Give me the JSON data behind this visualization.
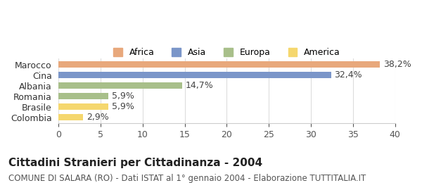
{
  "categories": [
    "Colombia",
    "Brasile",
    "Romania",
    "Albania",
    "Cina",
    "Marocco"
  ],
  "values": [
    2.9,
    5.9,
    5.9,
    14.7,
    32.4,
    38.2
  ],
  "labels": [
    "2,9%",
    "5,9%",
    "5,9%",
    "14,7%",
    "32,4%",
    "38,2%"
  ],
  "colors": [
    "#f5d76e",
    "#f5d76e",
    "#a8bf8a",
    "#a8bf8a",
    "#7b96c9",
    "#e8a87c"
  ],
  "continent": [
    "America",
    "America",
    "Europa",
    "Europa",
    "Asia",
    "Africa"
  ],
  "legend_items": [
    {
      "label": "Africa",
      "color": "#e8a87c"
    },
    {
      "label": "Asia",
      "color": "#7b96c9"
    },
    {
      "label": "Europa",
      "color": "#a8bf8a"
    },
    {
      "label": "America",
      "color": "#f5d76e"
    }
  ],
  "xlim": [
    0,
    40
  ],
  "xticks": [
    0,
    5,
    10,
    15,
    20,
    25,
    30,
    35,
    40
  ],
  "title": "Cittadini Stranieri per Cittadinanza - 2004",
  "subtitle": "COMUNE DI SALARA (RO) - Dati ISTAT al 1° gennaio 2004 - Elaborazione TUTTITALIA.IT",
  "background_color": "#ffffff",
  "grid_color": "#dddddd",
  "bar_height": 0.6,
  "label_fontsize": 9,
  "title_fontsize": 11,
  "subtitle_fontsize": 8.5,
  "tick_fontsize": 9,
  "ytick_fontsize": 9
}
